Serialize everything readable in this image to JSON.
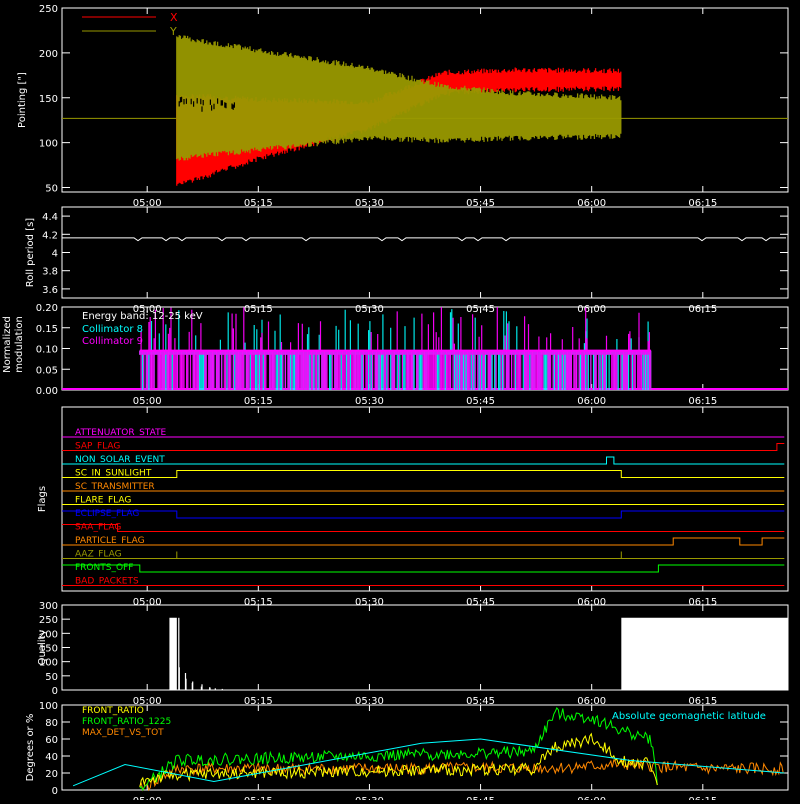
{
  "chart_data": [
    {
      "type": "line",
      "id": "pointing",
      "ylabel": "Pointing [\"]",
      "ylim": [
        45,
        250
      ],
      "yticks": [
        50,
        100,
        150,
        200,
        250
      ],
      "xticks": [
        "05:00",
        "05:15",
        "05:30",
        "05:45",
        "06:00",
        "06:15"
      ],
      "legend": {
        "placement": "top-left"
      },
      "series": [
        {
          "name": "X",
          "color": "#ff0000",
          "x": [
            "04:50",
            "05:03",
            "05:04",
            "05:15",
            "05:30",
            "05:40",
            "05:50",
            "06:04",
            "06:04",
            "06:26"
          ],
          "upper": [
            127,
            127,
            150,
            145,
            142,
            175,
            178,
            177,
            127,
            127
          ],
          "lower": [
            127,
            127,
            55,
            85,
            118,
            158,
            162,
            163,
            127,
            127
          ]
        },
        {
          "name": "Y",
          "color": "#999900",
          "x": [
            "04:50",
            "05:03",
            "05:04",
            "05:15",
            "05:30",
            "05:40",
            "05:50",
            "06:04",
            "06:04",
            "06:26"
          ],
          "upper": [
            127,
            127,
            215,
            200,
            180,
            160,
            152,
            147,
            127,
            127
          ],
          "lower": [
            127,
            127,
            85,
            95,
            108,
            105,
            108,
            110,
            127,
            127
          ]
        }
      ]
    },
    {
      "type": "line",
      "id": "roll",
      "ylabel": "Roll period [s]",
      "ylim": [
        3.5,
        4.5
      ],
      "yticks": [
        3.6,
        3.8,
        4.0,
        4.2,
        4.4
      ],
      "xticks": [
        "05:00",
        "05:15",
        "05:30",
        "05:45",
        "06:00",
        "06:15"
      ],
      "series": [
        {
          "color": "#ffffff",
          "x": [
            "04:50",
            "06:26"
          ],
          "values": [
            4.16,
            4.16
          ]
        }
      ]
    },
    {
      "type": "line",
      "id": "modulation",
      "ylabel": "Normalized modulation",
      "ylim": [
        0,
        0.2
      ],
      "yticks": [
        0.0,
        0.05,
        0.1,
        0.15,
        0.2
      ],
      "yticklabels": [
        "0.00",
        "0.05",
        "0.10",
        "0.15",
        "0.20"
      ],
      "xticks": [
        "05:00",
        "05:15",
        "05:30",
        "05:45",
        "06:00",
        "06:15"
      ],
      "annotation": "Energy band: 12-25 keV",
      "legend": {
        "placement": "top-left"
      },
      "active_range": [
        "04:59",
        "06:08"
      ],
      "baseline_level": 0.095,
      "series": [
        {
          "name": "Collimator 8",
          "color": "#00ffff"
        },
        {
          "name": "Collimator 9",
          "color": "#ff00ff"
        }
      ]
    },
    {
      "type": "line",
      "id": "flags",
      "ylabel": "Flags",
      "xticks": [
        "05:00",
        "05:15",
        "05:30",
        "05:45",
        "06:00",
        "06:15"
      ],
      "series": [
        {
          "name": "ATTENUATOR_STATE",
          "color": "#ff00ff",
          "steps": [
            [
              "04:50",
              0
            ]
          ]
        },
        {
          "name": "SAP_FLAG",
          "color": "#ff0000",
          "steps": [
            [
              "04:50",
              0
            ],
            [
              "06:25",
              1
            ]
          ]
        },
        {
          "name": "NON_SOLAR_EVENT",
          "color": "#00ffff",
          "steps": [
            [
              "04:50",
              0
            ],
            [
              "06:02",
              1
            ],
            [
              "06:03",
              0
            ]
          ]
        },
        {
          "name": "SC_IN_SUNLIGHT",
          "color": "#ffff00",
          "steps": [
            [
              "04:50",
              0
            ],
            [
              "05:04",
              1
            ],
            [
              "06:04",
              0
            ]
          ]
        },
        {
          "name": "SC_TRANSMITTER",
          "color": "#ff8800",
          "steps": [
            [
              "04:50",
              0
            ]
          ]
        },
        {
          "name": "FLARE_FLAG",
          "color": "#ffff00",
          "steps": [
            [
              "04:50",
              0
            ]
          ]
        },
        {
          "name": "ECLIPSE_FLAG",
          "color": "#0000ff",
          "steps": [
            [
              "04:50",
              1
            ],
            [
              "05:04",
              0
            ],
            [
              "06:04",
              1
            ]
          ]
        },
        {
          "name": "SAA_FLAG",
          "color": "#ff0000",
          "steps": [
            [
              "04:50",
              1
            ],
            [
              "04:56",
              0
            ]
          ]
        },
        {
          "name": "PARTICLE_FLAG",
          "color": "#ff8800",
          "steps": [
            [
              "04:50",
              0
            ],
            [
              "06:11",
              1
            ],
            [
              "06:20",
              0
            ],
            [
              "06:23",
              1
            ]
          ]
        },
        {
          "name": "AAZ_FLAG",
          "color": "#999900",
          "steps": [
            [
              "04:50",
              0
            ],
            [
              "05:04",
              1
            ],
            [
              "05:04",
              0
            ],
            [
              "06:04",
              1
            ],
            [
              "06:04",
              0
            ]
          ]
        },
        {
          "name": "FRONTS_OFF",
          "color": "#00ff00",
          "steps": [
            [
              "04:50",
              1
            ],
            [
              "04:59",
              0
            ],
            [
              "06:09",
              1
            ]
          ]
        },
        {
          "name": "BAD_PACKETS",
          "color": "#ff0000",
          "steps": [
            [
              "04:50",
              0
            ]
          ]
        }
      ]
    },
    {
      "type": "bar",
      "id": "quality",
      "ylabel": "Quality",
      "ylim": [
        0,
        300
      ],
      "yticks": [
        0,
        50,
        100,
        150,
        200,
        250,
        300
      ],
      "xticks": [
        "05:00",
        "05:15",
        "05:30",
        "05:45",
        "06:00",
        "06:15"
      ],
      "series": [
        {
          "color": "#ffffff",
          "x": [
            "05:04",
            "05:04",
            "05:05",
            "05:05",
            "05:06",
            "05:06",
            "05:07",
            "05:07",
            "05:08",
            "05:08",
            "05:09",
            "05:10",
            "06:04"
          ],
          "values": [
            255,
            80,
            60,
            40,
            30,
            25,
            20,
            12,
            10,
            8,
            6,
            4,
            255
          ],
          "fill_after": "06:04"
        }
      ]
    },
    {
      "type": "line",
      "id": "ratios",
      "ylabel": "Degrees or %",
      "ylim": [
        0,
        100
      ],
      "yticks": [
        0,
        20,
        40,
        60,
        80,
        100
      ],
      "xticks": [
        "05:00",
        "05:15",
        "05:30",
        "05:45",
        "06:00",
        "06:15"
      ],
      "annotation": "Absolute geomagnetic latitude",
      "annotation_color": "#00ffff",
      "legend": {
        "placement": "top-left"
      },
      "series": [
        {
          "name": "FRONT_RATIO",
          "color": "#ffff00",
          "x": [
            "04:59",
            "05:04",
            "05:30",
            "05:52",
            "05:55",
            "06:00",
            "06:04",
            "06:08",
            "06:09"
          ],
          "values": [
            10,
            18,
            22,
            25,
            50,
            60,
            35,
            30,
            0
          ]
        },
        {
          "name": "FRONT_RATIO_1225",
          "color": "#00ff00",
          "x": [
            "04:59",
            "05:04",
            "05:30",
            "05:52",
            "05:55",
            "06:00",
            "06:04",
            "06:08",
            "06:09"
          ],
          "values": [
            0,
            35,
            40,
            45,
            90,
            85,
            70,
            60,
            0
          ]
        },
        {
          "name": "MAX_DET_VS_TOT",
          "color": "#ff8800",
          "x": [
            "04:59",
            "05:04",
            "05:30",
            "05:52",
            "05:55",
            "06:00",
            "06:04",
            "06:15",
            "06:26"
          ],
          "values": [
            0,
            25,
            25,
            26,
            26,
            28,
            30,
            25,
            25
          ]
        },
        {
          "name": "",
          "color": "#00ffff",
          "x": [
            "04:50",
            "04:57",
            "05:09",
            "05:37",
            "05:45",
            "06:05",
            "06:26"
          ],
          "values": [
            5,
            30,
            10,
            55,
            60,
            35,
            20
          ]
        }
      ]
    }
  ]
}
